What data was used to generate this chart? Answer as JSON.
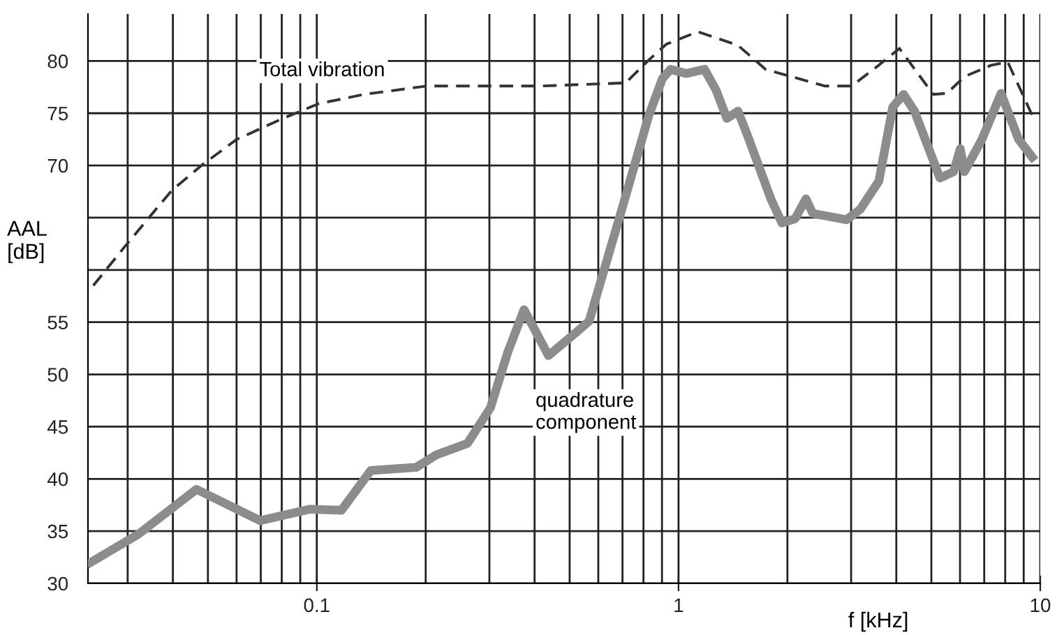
{
  "chart_data": {
    "type": "line",
    "xlabel": "f [kHz]",
    "ylabel": "AAL\n[dB]",
    "log": "x",
    "grid": true,
    "legend": false,
    "marker": "none",
    "xlim": [
      0.0233,
      10
    ],
    "xticks": [
      0.1,
      1,
      10
    ],
    "ylim": [
      30,
      84.5
    ],
    "yticks": [
      30,
      35,
      40,
      45,
      50,
      55,
      {
        "value": 60,
        "label": null
      },
      {
        "value": 65,
        "label": null
      },
      70,
      75,
      80
    ],
    "series": [
      {
        "name": "Total vibration",
        "color": "#333333",
        "line_style": "dashed",
        "x": [
          0.0241,
          0.0294,
          0.0397,
          0.0484,
          0.0601,
          0.0806,
          0.101,
          0.135,
          0.201,
          0.415,
          0.714,
          0.828,
          0.925,
          1.13,
          1.46,
          1.74,
          2.54,
          3.01,
          3.58,
          4.08,
          5.06,
          5.52,
          6.17,
          7.33,
          8.13,
          9.5
        ],
        "values": [
          58.5,
          62.2,
          67.6,
          70.1,
          72.5,
          74.5,
          75.9,
          76.8,
          77.6,
          77.6,
          77.9,
          80.1,
          81.6,
          82.8,
          81.5,
          79.2,
          77.6,
          77.6,
          79.6,
          81.2,
          76.8,
          76.9,
          78.5,
          79.6,
          79.9,
          74.8
        ]
      },
      {
        "name": "quadrature\ncomponent",
        "color": "#8c8c8c",
        "line_style": "solid",
        "x": [
          0.0237,
          0.0321,
          0.0465,
          0.0697,
          0.0958,
          0.117,
          0.141,
          0.188,
          0.214,
          0.261,
          0.302,
          0.337,
          0.374,
          0.437,
          0.52,
          0.566,
          0.697,
          0.828,
          0.902,
          0.95,
          1.05,
          1.18,
          1.27,
          1.36,
          1.46,
          1.55,
          1.8,
          1.93,
          2.1,
          2.25,
          2.35,
          2.91,
          3.18,
          3.58,
          3.91,
          4.19,
          4.49,
          5.28,
          5.76,
          6.01,
          6.17,
          6.9,
          7.79,
          8.71,
          9.5
        ],
        "values": [
          32.0,
          34.7,
          39.0,
          36.0,
          37.1,
          37.0,
          40.8,
          41.1,
          42.3,
          43.4,
          46.8,
          52.1,
          56.2,
          51.8,
          54.0,
          55.1,
          65.8,
          74.8,
          78.3,
          79.2,
          78.8,
          79.2,
          77.2,
          74.5,
          75.2,
          72.9,
          66.8,
          64.5,
          64.9,
          66.8,
          65.4,
          64.8,
          65.8,
          68.5,
          75.6,
          76.8,
          75.2,
          68.8,
          69.4,
          71.6,
          69.4,
          72.5,
          76.9,
          72.5,
          70.8
        ]
      }
    ]
  }
}
